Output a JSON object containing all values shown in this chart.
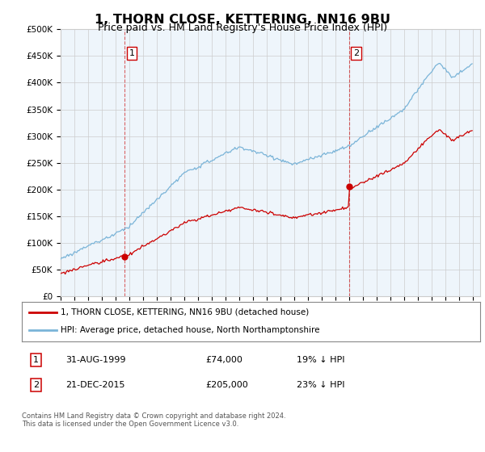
{
  "title": "1, THORN CLOSE, KETTERING, NN16 9BU",
  "subtitle": "Price paid vs. HM Land Registry's House Price Index (HPI)",
  "title_fontsize": 11.5,
  "subtitle_fontsize": 9,
  "ylabel_ticks": [
    "£0",
    "£50K",
    "£100K",
    "£150K",
    "£200K",
    "£250K",
    "£300K",
    "£350K",
    "£400K",
    "£450K",
    "£500K"
  ],
  "ytick_values": [
    0,
    50000,
    100000,
    150000,
    200000,
    250000,
    300000,
    350000,
    400000,
    450000,
    500000
  ],
  "ylim": [
    0,
    500000
  ],
  "xlim_start": 1995.0,
  "xlim_end": 2025.5,
  "hpi_color": "#7ab4d8",
  "hpi_fill_color": "#dceef7",
  "price_color": "#cc0000",
  "marker1_date": 1999.66,
  "marker1_price": 74000,
  "marker1_label": "1",
  "marker2_date": 2015.97,
  "marker2_price": 205000,
  "marker2_label": "2",
  "legend_line1": "1, THORN CLOSE, KETTERING, NN16 9BU (detached house)",
  "legend_line2": "HPI: Average price, detached house, North Northamptonshire",
  "footer": "Contains HM Land Registry data © Crown copyright and database right 2024.\nThis data is licensed under the Open Government Licence v3.0.",
  "background_color": "#ffffff",
  "grid_color": "#cccccc",
  "chart_bg_color": "#eef5fb"
}
